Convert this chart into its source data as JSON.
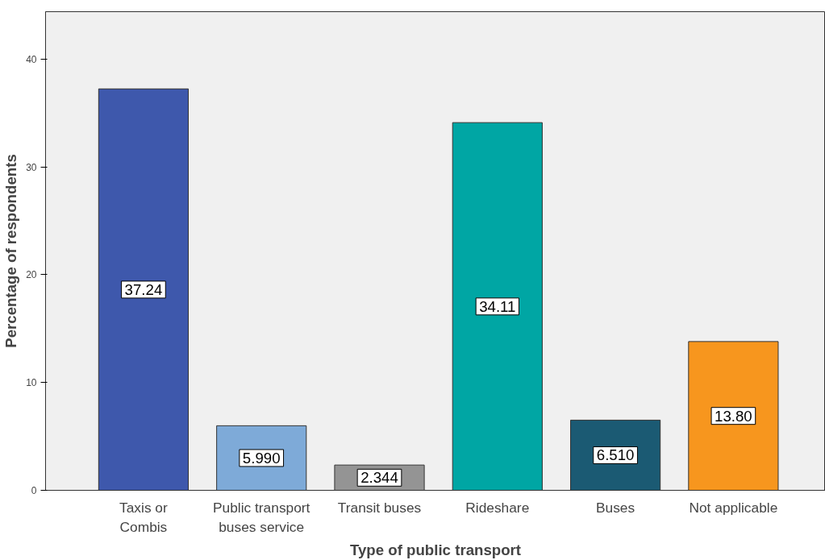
{
  "chart_data": {
    "type": "bar",
    "xlabel": "Type of public transport",
    "ylabel": "Percentage of respondents",
    "categories": [
      "Taxis or\nCombis",
      "Public transport\nbuses service",
      "Transit buses",
      "Rideshare",
      "Buses",
      "Not applicable"
    ],
    "values": [
      37.24,
      5.99,
      2.344,
      34.11,
      6.51,
      13.8
    ],
    "value_labels": [
      "37.24",
      "5.990",
      "2.344",
      "34.11",
      "6.510",
      "13.80"
    ],
    "colors": [
      "#3e58ac",
      "#7eaad8",
      "#949494",
      "#00a6a4",
      "#1b5a73",
      "#f7961e"
    ],
    "ylim": [
      0,
      44.4
    ],
    "yticks": [
      0,
      10,
      20,
      30,
      40
    ],
    "grid": false
  }
}
